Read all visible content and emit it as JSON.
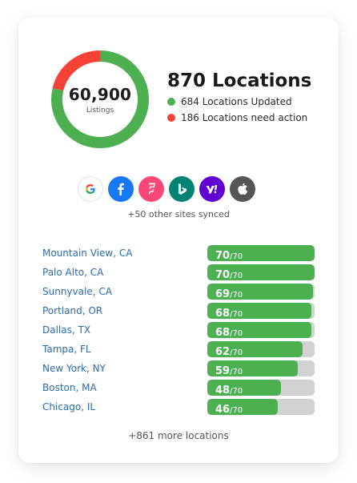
{
  "summary": {
    "listings_value": "60,900",
    "listings_caption": "Listings",
    "title": "870 Locations",
    "updated_label": "684 Locations Updated",
    "action_label": "186 Locations need action",
    "updated_count": 684,
    "action_count": 186,
    "updated_color": "#4caf50",
    "action_color": "#f44336"
  },
  "sites": {
    "icons": [
      {
        "name": "google-icon",
        "color": "#ffffff"
      },
      {
        "name": "facebook-icon",
        "color": "#1877f2"
      },
      {
        "name": "foursquare-icon",
        "color": "#f94877"
      },
      {
        "name": "bing-icon",
        "color": "#008373"
      },
      {
        "name": "yahoo-icon",
        "color": "#6001d2"
      },
      {
        "name": "apple-icon",
        "color": "#555555"
      }
    ],
    "caption": "+50 other sites synced"
  },
  "locations": [
    {
      "name": "Mountain View, CA",
      "score": "70",
      "max": "/70",
      "fraction": 1.0
    },
    {
      "name": "Palo Alto, CA",
      "score": "70",
      "max": "/70",
      "fraction": 1.0
    },
    {
      "name": "Sunnyvale, CA",
      "score": "69",
      "max": "/70",
      "fraction": 0.9857
    },
    {
      "name": "Portland, OR",
      "score": "68",
      "max": "/70",
      "fraction": 0.9714
    },
    {
      "name": "Dallas, TX",
      "score": "68",
      "max": "/70",
      "fraction": 0.9714
    },
    {
      "name": "Tampa, FL",
      "score": "62",
      "max": "/70",
      "fraction": 0.8857
    },
    {
      "name": "New York, NY",
      "score": "59",
      "max": "/70",
      "fraction": 0.8429
    },
    {
      "name": "Boston, MA",
      "score": "48",
      "max": "/70",
      "fraction": 0.6857
    },
    {
      "name": "Chicago, IL",
      "score": "46",
      "max": "/70",
      "fraction": 0.6571
    }
  ],
  "more_label": "+861 more locations"
}
